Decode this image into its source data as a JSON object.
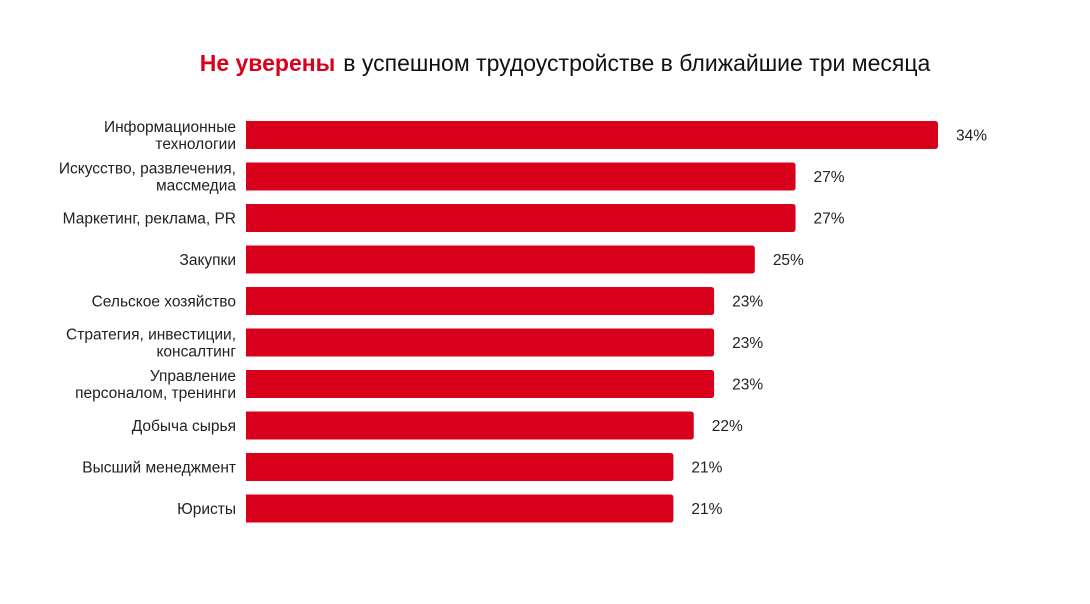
{
  "chart_data": {
    "type": "bar",
    "orientation": "horizontal",
    "title_highlight": "Не уверены",
    "title_rest": "в успешном трудоустройстве в ближайшие три месяца",
    "categories": [
      [
        "Информационные",
        "технологии"
      ],
      [
        "Искусство, развлечения,",
        "массмедиа"
      ],
      [
        "Маркетинг, реклама, PR"
      ],
      [
        "Закупки"
      ],
      [
        "Сельское хозяйство"
      ],
      [
        "Стратегия, инвестиции,",
        "консалтинг"
      ],
      [
        "Управление",
        "персоналом, тренинги"
      ],
      [
        "Добыча сырья"
      ],
      [
        "Высший менеджмент"
      ],
      [
        "Юристы"
      ]
    ],
    "values": [
      34,
      27,
      27,
      25,
      23,
      23,
      23,
      22,
      21,
      21
    ],
    "value_suffix": "%",
    "xlim": [
      0,
      34
    ],
    "grid": false,
    "colors": {
      "bar": "#d9001b",
      "highlight": "#d9001b",
      "text": "#222222"
    }
  }
}
